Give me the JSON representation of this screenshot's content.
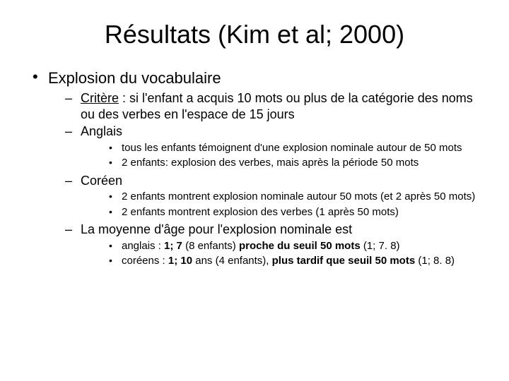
{
  "title": "Résultats (Kim et al; 2000)",
  "l1": {
    "item0": "Explosion du vocabulaire"
  },
  "l2": {
    "critere_label": "Critère",
    "critere_rest": " : si l'enfant a acquis 10 mots ou plus de la catégorie des noms ou des verbes en l'espace de 15 jours",
    "anglais": "Anglais",
    "coreen": "Coréen",
    "moyenne": "La moyenne d'âge pour l'explosion nominale est"
  },
  "l3": {
    "ang_a": "tous les enfants témoignent d'une explosion nominale autour de 50 mots",
    "ang_b": "2 enfants: explosion des verbes, mais après la période 50 mots",
    "cor_a": "2 enfants montrent explosion nominale autour 50 mots (et 2 après 50 mots)",
    "cor_b": "2 enfants montrent explosion des verbes (1 après 50 mots)",
    "moy_a_pre": "anglais : ",
    "moy_a_bold1": "1; 7",
    "moy_a_mid": " (8 enfants) ",
    "moy_a_bold2": "proche du seuil 50 mots",
    "moy_a_post": " (1; 7. 8)",
    "moy_b_pre": "coréens :  ",
    "moy_b_bold1": "1; 10",
    "moy_b_mid": " ans (4 enfants), ",
    "moy_b_bold2": "plus tardif que seuil 50 mots",
    "moy_b_post": " (1; 8. 8)"
  }
}
